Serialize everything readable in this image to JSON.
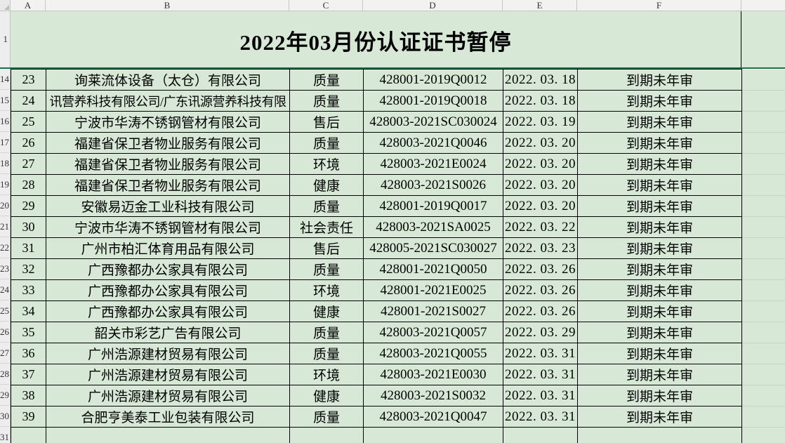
{
  "spreadsheet": {
    "title": "2022年03月份认证证书暂停",
    "column_headers": [
      "A",
      "B",
      "C",
      "D",
      "E",
      "F",
      ""
    ],
    "row_numbers": [
      "1",
      "14",
      "15",
      "16",
      "17",
      "18",
      "19",
      "20",
      "21",
      "22",
      "23",
      "24",
      "25",
      "26",
      "27",
      "28",
      "29",
      "30",
      "31"
    ],
    "rows": [
      {
        "seq": "23",
        "company": "询莱流体设备（太仓）有限公司",
        "type": "质量",
        "cert_no": "428001-2019Q0012",
        "date": "2022. 03. 18",
        "status": "到期未年审"
      },
      {
        "seq": "24",
        "company": "讯营养科技有限公司/广东讯源营养科技有限",
        "type": "质量",
        "cert_no": "428001-2019Q0018",
        "date": "2022. 03. 18",
        "status": "到期未年审"
      },
      {
        "seq": "25",
        "company": "宁波市华涛不锈钢管材有限公司",
        "type": "售后",
        "cert_no": "428003-2021SC030024",
        "date": "2022. 03. 19",
        "status": "到期未年审"
      },
      {
        "seq": "26",
        "company": "福建省保卫者物业服务有限公司",
        "type": "质量",
        "cert_no": "428003-2021Q0046",
        "date": "2022. 03. 20",
        "status": "到期未年审"
      },
      {
        "seq": "27",
        "company": "福建省保卫者物业服务有限公司",
        "type": "环境",
        "cert_no": "428003-2021E0024",
        "date": "2022. 03. 20",
        "status": "到期未年审"
      },
      {
        "seq": "28",
        "company": "福建省保卫者物业服务有限公司",
        "type": "健康",
        "cert_no": "428003-2021S0026",
        "date": "2022. 03. 20",
        "status": "到期未年审"
      },
      {
        "seq": "29",
        "company": "安徽易迈金工业科技有限公司",
        "type": "质量",
        "cert_no": "428001-2019Q0017",
        "date": "2022. 03. 20",
        "status": "到期未年审"
      },
      {
        "seq": "30",
        "company": "宁波市华涛不锈钢管材有限公司",
        "type": "社会责任",
        "cert_no": "428003-2021SA0025",
        "date": "2022. 03. 22",
        "status": "到期未年审"
      },
      {
        "seq": "31",
        "company": "广州市柏汇体育用品有限公司",
        "type": "售后",
        "cert_no": "428005-2021SC030027",
        "date": "2022. 03. 23",
        "status": "到期未年审"
      },
      {
        "seq": "32",
        "company": "广西豫都办公家具有限公司",
        "type": "质量",
        "cert_no": "428001-2021Q0050",
        "date": "2022. 03. 26",
        "status": "到期未年审"
      },
      {
        "seq": "33",
        "company": "广西豫都办公家具有限公司",
        "type": "环境",
        "cert_no": "428001-2021E0025",
        "date": "2022. 03. 26",
        "status": "到期未年审"
      },
      {
        "seq": "34",
        "company": "广西豫都办公家具有限公司",
        "type": "健康",
        "cert_no": "428001-2021S0027",
        "date": "2022. 03. 26",
        "status": "到期未年审"
      },
      {
        "seq": "35",
        "company": "韶关市彩艺广告有限公司",
        "type": "质量",
        "cert_no": "428003-2021Q0057",
        "date": "2022. 03. 29",
        "status": "到期未年审"
      },
      {
        "seq": "36",
        "company": "广州浩源建材贸易有限公司",
        "type": "质量",
        "cert_no": "428003-2021Q0055",
        "date": "2022. 03. 31",
        "status": "到期未年审"
      },
      {
        "seq": "37",
        "company": "广州浩源建材贸易有限公司",
        "type": "环境",
        "cert_no": "428003-2021E0030",
        "date": "2022. 03. 31",
        "status": "到期未年审"
      },
      {
        "seq": "38",
        "company": "广州浩源建材贸易有限公司",
        "type": "健康",
        "cert_no": "428003-2021S0032",
        "date": "2022. 03. 31",
        "status": "到期未年审"
      },
      {
        "seq": "39",
        "company": "合肥亨美泰工业包装有限公司",
        "type": "质量",
        "cert_no": "428003-2021Q0047",
        "date": "2022. 03. 31",
        "status": "到期未年审"
      },
      {
        "seq": "",
        "company": "",
        "type": "",
        "cert_no": "",
        "date": "",
        "status": ""
      }
    ]
  },
  "colors": {
    "cell_fill_green": "#d7e9d6",
    "grid_border_black": "#000000",
    "freeze_pane_line": "#1a6f4c",
    "header_gray": "#f2f2f1"
  }
}
